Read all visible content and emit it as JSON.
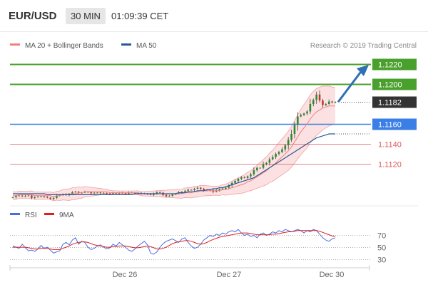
{
  "header": {
    "symbol": "EUR/USD",
    "timeframe": "30 MIN",
    "time": "01:09:39 CET"
  },
  "credit": "Research © 2019 Trading Central",
  "colors": {
    "resistance": "#4aa02c",
    "last": "#333333",
    "pivot": "#3a7ee6",
    "support": "#e05a5a",
    "ma50": "#2a5898",
    "bands": "#f2a0a0",
    "rsi": "#4a6ee0",
    "rsi_ma": "#e02020",
    "arrow": "#2f6fb5"
  },
  "chart_data": [
    {
      "type": "line",
      "legend": [
        {
          "name": "MA 20 + Bollinger Bands",
          "color": "#f08080"
        },
        {
          "name": "MA 50",
          "color": "#2a5898"
        }
      ],
      "x_ticks": [
        "Dec 26",
        "Dec 27",
        "Dec 30"
      ],
      "price_levels": [
        {
          "label": "1.1220",
          "value": 1.122,
          "kind": "resistance"
        },
        {
          "label": "1.1200",
          "value": 1.12,
          "kind": "resistance"
        },
        {
          "label": "1.1182",
          "value": 1.1182,
          "kind": "last"
        },
        {
          "label": "1.1160",
          "value": 1.116,
          "kind": "pivot"
        },
        {
          "label": "1.1140",
          "value": 1.114,
          "kind": "support"
        },
        {
          "label": "1.1120",
          "value": 1.112,
          "kind": "support"
        }
      ],
      "ylim": [
        1.108,
        1.123
      ],
      "close": [
        1.10865,
        1.10878,
        1.10881,
        1.10875,
        1.1088,
        1.10882,
        1.10858,
        1.10866,
        1.1087,
        1.10872,
        1.10868,
        1.1086,
        1.10848,
        1.10858,
        1.1088,
        1.10888,
        1.10895,
        1.10885,
        1.109,
        1.10915,
        1.1092,
        1.10908,
        1.10912,
        1.1092,
        1.10915,
        1.10905,
        1.1091,
        1.10912,
        1.10905,
        1.10908,
        1.10903,
        1.109,
        1.10908,
        1.10905,
        1.1091,
        1.10906,
        1.109,
        1.10912,
        1.1091,
        1.10903,
        1.10908,
        1.10905,
        1.109,
        1.10895,
        1.10888,
        1.10904,
        1.10915,
        1.1091,
        1.10888,
        1.10875,
        1.1088,
        1.10895,
        1.10898,
        1.10912,
        1.1092,
        1.1093,
        1.1094,
        1.10938,
        1.1095,
        1.1096,
        1.10948,
        1.10934,
        1.1093,
        1.10935,
        1.1092,
        1.10932,
        1.10945,
        1.1095,
        1.1096,
        1.10985,
        1.11008,
        1.11028,
        1.1105,
        1.11065,
        1.11058,
        1.11075,
        1.11095,
        1.11135,
        1.1116,
        1.1116,
        1.11195,
        1.1121,
        1.11245,
        1.11268,
        1.113,
        1.11318,
        1.11345,
        1.11385,
        1.1144,
        1.115,
        1.1159,
        1.11675,
        1.1169,
        1.11705,
        1.11725,
        1.118,
        1.1184,
        1.11895,
        1.11835,
        1.1179,
        1.118,
        1.11825,
        1.11815,
        1.1182
      ],
      "ma20": [
        1.1088,
        1.1088,
        1.1089,
        1.1089,
        1.1089,
        1.1089,
        1.1089,
        1.1088,
        1.1088,
        1.1088,
        1.1088,
        1.1088,
        1.1088,
        1.1087,
        1.1088,
        1.1088,
        1.1089,
        1.1089,
        1.1089,
        1.109,
        1.109,
        1.1091,
        1.1091,
        1.1092,
        1.1092,
        1.1092,
        1.1092,
        1.1092,
        1.1092,
        1.1092,
        1.1092,
        1.1091,
        1.1091,
        1.1091,
        1.1091,
        1.1091,
        1.1091,
        1.1091,
        1.1091,
        1.1091,
        1.1091,
        1.109,
        1.109,
        1.109,
        1.109,
        1.109,
        1.109,
        1.109,
        1.109,
        1.109,
        1.109,
        1.109,
        1.109,
        1.109,
        1.109,
        1.1091,
        1.1091,
        1.1091,
        1.1092,
        1.1092,
        1.1093,
        1.1093,
        1.1093,
        1.1093,
        1.1093,
        1.1093,
        1.1093,
        1.1094,
        1.1094,
        1.1095,
        1.1096,
        1.1097,
        1.1098,
        1.1099,
        1.11,
        1.1102,
        1.1103,
        1.1105,
        1.1107,
        1.1109,
        1.1111,
        1.1113,
        1.1116,
        1.1118,
        1.1121,
        1.1124,
        1.1127,
        1.113,
        1.1133,
        1.1137,
        1.1142,
        1.1147,
        1.1152,
        1.1156,
        1.116,
        1.1165,
        1.1169,
        1.1172,
        1.1174,
        1.1176,
        1.1177,
        1.1178,
        1.1178,
        1.1178
      ],
      "band_width": [
        0.0004,
        0.00038,
        0.00036,
        0.00035,
        0.00035,
        0.00036,
        0.00037,
        0.00038,
        0.00038,
        0.00037,
        0.00036,
        0.00036,
        0.00038,
        0.00041,
        0.00044,
        0.00048,
        0.00052,
        0.00055,
        0.00058,
        0.0006,
        0.0006,
        0.00058,
        0.00055,
        0.00052,
        0.00048,
        0.00044,
        0.0004,
        0.00036,
        0.00032,
        0.00028,
        0.00025,
        0.00022,
        0.0002,
        0.00019,
        0.00018,
        0.00018,
        0.00018,
        0.00018,
        0.00018,
        0.00018,
        0.00019,
        0.0002,
        0.00022,
        0.00024,
        0.00026,
        0.00028,
        0.0003,
        0.00032,
        0.00034,
        0.00036,
        0.00038,
        0.0004,
        0.00042,
        0.00044,
        0.00046,
        0.00048,
        0.0005,
        0.00052,
        0.00054,
        0.00054,
        0.00054,
        0.00052,
        0.0005,
        0.00048,
        0.00046,
        0.00046,
        0.00048,
        0.0005,
        0.00055,
        0.0006,
        0.00066,
        0.00072,
        0.00078,
        0.00085,
        0.0009,
        0.00095,
        0.001,
        0.00108,
        0.00116,
        0.00124,
        0.00132,
        0.0014,
        0.00148,
        0.00156,
        0.00164,
        0.00172,
        0.0018,
        0.00188,
        0.00196,
        0.00204,
        0.00212,
        0.0022,
        0.00228,
        0.00234,
        0.0024,
        0.0024,
        0.00238,
        0.00234,
        0.00228,
        0.0022,
        0.0021,
        0.002,
        0.0019,
        0.00182
      ],
      "ma50": [
        1.109,
        1.109,
        1.109,
        1.109,
        1.109,
        1.109,
        1.109,
        1.109,
        1.109,
        1.109,
        1.109,
        1.1089,
        1.1089,
        1.1089,
        1.1089,
        1.1089,
        1.1089,
        1.1089,
        1.1089,
        1.1089,
        1.1089,
        1.1089,
        1.1089,
        1.1089,
        1.1089,
        1.1089,
        1.1089,
        1.1089,
        1.1089,
        1.1089,
        1.1089,
        1.1089,
        1.1089,
        1.1089,
        1.1089,
        1.1089,
        1.1089,
        1.1089,
        1.1089,
        1.109,
        1.109,
        1.109,
        1.109,
        1.109,
        1.109,
        1.109,
        1.109,
        1.109,
        1.109,
        1.109,
        1.109,
        1.109,
        1.109,
        1.1091,
        1.1091,
        1.1091,
        1.1092,
        1.1092,
        1.1092,
        1.1093,
        1.1093,
        1.1093,
        1.1094,
        1.1094,
        1.1095,
        1.1095,
        1.1096,
        1.1096,
        1.1097,
        1.1098,
        1.1099,
        1.11,
        1.1101,
        1.1102,
        1.1103,
        1.1104,
        1.1105,
        1.1106,
        1.1108,
        1.111,
        1.1112,
        1.1114,
        1.1116,
        1.1118,
        1.112,
        1.1122,
        1.1124,
        1.1126,
        1.1128,
        1.113,
        1.1132,
        1.1134,
        1.1136,
        1.1138,
        1.114,
        1.1142,
        1.1144,
        1.1146,
        1.1147,
        1.1148,
        1.1149,
        1.115,
        1.115,
        1.115
      ],
      "projection": {
        "from": 1.1182,
        "to": 1.122
      }
    },
    {
      "type": "line",
      "legend": [
        {
          "name": "RSI",
          "color": "#4a6ee0"
        },
        {
          "name": "9MA",
          "color": "#e02020"
        }
      ],
      "y_ticks": [
        70,
        50,
        30
      ],
      "ylim": [
        20,
        85
      ],
      "rsi": [
        52,
        50,
        48,
        55,
        49,
        44,
        45,
        43,
        47,
        53,
        48,
        50,
        45,
        40,
        42,
        44,
        55,
        58,
        54,
        62,
        66,
        55,
        60,
        58,
        50,
        46,
        48,
        52,
        54,
        50,
        47,
        49,
        55,
        52,
        58,
        54,
        50,
        45,
        43,
        47,
        52,
        56,
        60,
        54,
        40,
        38,
        42,
        50,
        56,
        60,
        62,
        64,
        61,
        58,
        64,
        66,
        58,
        52,
        48,
        50,
        55,
        62,
        66,
        70,
        68,
        72,
        70,
        74,
        72,
        76,
        78,
        76,
        80,
        74,
        70,
        72,
        68,
        70,
        66,
        72,
        74,
        70,
        72,
        76,
        74,
        78,
        76,
        80,
        78,
        76,
        78,
        80,
        78,
        74,
        78,
        76,
        80,
        78,
        72,
        66,
        62,
        60,
        64,
        66
      ],
      "rsi_ma": [
        50,
        50,
        50,
        50,
        50,
        49,
        48,
        47,
        47,
        48,
        48,
        48,
        47,
        46,
        46,
        46,
        48,
        50,
        52,
        55,
        57,
        58,
        59,
        59,
        58,
        56,
        54,
        53,
        52,
        51,
        50,
        50,
        51,
        51,
        52,
        52,
        52,
        51,
        50,
        49,
        49,
        50,
        51,
        52,
        51,
        49,
        47,
        47,
        48,
        50,
        53,
        56,
        58,
        59,
        60,
        61,
        61,
        60,
        58,
        56,
        55,
        56,
        58,
        61,
        63,
        65,
        67,
        68,
        69,
        70,
        71,
        72,
        73,
        74,
        74,
        74,
        73,
        72,
        71,
        71,
        71,
        71,
        71,
        72,
        72,
        73,
        74,
        75,
        76,
        76,
        77,
        78,
        78,
        78,
        78,
        78,
        78,
        78,
        77,
        75,
        73,
        71,
        69,
        68
      ]
    }
  ]
}
